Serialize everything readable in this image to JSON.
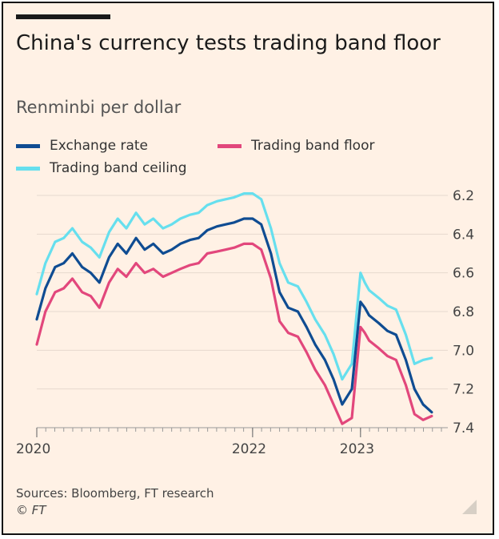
{
  "title": "China's currency tests trading band floor",
  "subtitle": "Renminbi per dollar",
  "sources": "Sources: Bloomberg, FT research",
  "copyright": "© FT",
  "chart_data": {
    "type": "line",
    "title": "China's currency tests trading band floor",
    "ylabel": "Renminbi per dollar",
    "y_inverted": true,
    "ylim": [
      7.4,
      6.2
    ],
    "yticks": [
      "6.2",
      "6.4",
      "6.6",
      "6.8",
      "7.0",
      "7.2",
      "7.4"
    ],
    "xlim": [
      2020.0,
      2023.75
    ],
    "xticks": [
      {
        "label": "2020",
        "value": 2020.0
      },
      {
        "label": "2022",
        "value": 2022.0
      },
      {
        "label": "2023",
        "value": 2023.0
      }
    ],
    "grid": "horizontal",
    "legend": "top-left",
    "series": [
      {
        "name": "Exchange rate",
        "color": "#0f4c92",
        "x": [
          2020.0,
          2020.08,
          2020.17,
          2020.25,
          2020.33,
          2020.42,
          2020.5,
          2020.58,
          2020.67,
          2020.75,
          2020.83,
          2020.92,
          2021.0,
          2021.08,
          2021.17,
          2021.25,
          2021.33,
          2021.42,
          2021.5,
          2021.58,
          2021.67,
          2021.75,
          2021.83,
          2021.92,
          2022.0,
          2022.08,
          2022.17,
          2022.25,
          2022.33,
          2022.42,
          2022.5,
          2022.58,
          2022.67,
          2022.75,
          2022.83,
          2022.92,
          2023.0,
          2023.04,
          2023.08,
          2023.17,
          2023.25,
          2023.33,
          2023.42,
          2023.5,
          2023.58,
          2023.66
        ],
        "y": [
          6.84,
          6.68,
          6.57,
          6.55,
          6.5,
          6.57,
          6.6,
          6.65,
          6.52,
          6.45,
          6.5,
          6.42,
          6.48,
          6.45,
          6.5,
          6.48,
          6.45,
          6.43,
          6.42,
          6.38,
          6.36,
          6.35,
          6.34,
          6.32,
          6.32,
          6.35,
          6.5,
          6.7,
          6.78,
          6.8,
          6.88,
          6.97,
          7.05,
          7.15,
          7.28,
          7.2,
          6.75,
          6.78,
          6.82,
          6.86,
          6.9,
          6.92,
          7.05,
          7.2,
          7.28,
          7.32
        ]
      },
      {
        "name": "Trading band floor",
        "color": "#e2477c",
        "x": [
          2020.0,
          2020.08,
          2020.17,
          2020.25,
          2020.33,
          2020.42,
          2020.5,
          2020.58,
          2020.67,
          2020.75,
          2020.83,
          2020.92,
          2021.0,
          2021.08,
          2021.17,
          2021.25,
          2021.33,
          2021.42,
          2021.5,
          2021.58,
          2021.67,
          2021.75,
          2021.83,
          2021.92,
          2022.0,
          2022.08,
          2022.17,
          2022.25,
          2022.33,
          2022.42,
          2022.5,
          2022.58,
          2022.67,
          2022.75,
          2022.83,
          2022.92,
          2023.0,
          2023.04,
          2023.08,
          2023.17,
          2023.25,
          2023.33,
          2023.42,
          2023.5,
          2023.58,
          2023.66
        ],
        "y": [
          6.97,
          6.8,
          6.7,
          6.68,
          6.63,
          6.7,
          6.72,
          6.78,
          6.65,
          6.58,
          6.62,
          6.55,
          6.6,
          6.58,
          6.62,
          6.6,
          6.58,
          6.56,
          6.55,
          6.5,
          6.49,
          6.48,
          6.47,
          6.45,
          6.45,
          6.48,
          6.63,
          6.85,
          6.91,
          6.93,
          7.01,
          7.1,
          7.18,
          7.28,
          7.38,
          7.35,
          6.88,
          6.91,
          6.95,
          6.99,
          7.03,
          7.05,
          7.18,
          7.33,
          7.36,
          7.34
        ]
      },
      {
        "name": "Trading band ceiling",
        "color": "#66dfee",
        "x": [
          2020.0,
          2020.08,
          2020.17,
          2020.25,
          2020.33,
          2020.42,
          2020.5,
          2020.58,
          2020.67,
          2020.75,
          2020.83,
          2020.92,
          2021.0,
          2021.08,
          2021.17,
          2021.25,
          2021.33,
          2021.42,
          2021.5,
          2021.58,
          2021.67,
          2021.75,
          2021.83,
          2021.92,
          2022.0,
          2022.08,
          2022.17,
          2022.25,
          2022.33,
          2022.42,
          2022.5,
          2022.58,
          2022.67,
          2022.75,
          2022.83,
          2022.92,
          2023.0,
          2023.04,
          2023.08,
          2023.17,
          2023.25,
          2023.33,
          2023.42,
          2023.5,
          2023.58,
          2023.66
        ],
        "y": [
          6.71,
          6.55,
          6.44,
          6.42,
          6.37,
          6.44,
          6.47,
          6.52,
          6.39,
          6.32,
          6.37,
          6.29,
          6.35,
          6.32,
          6.37,
          6.35,
          6.32,
          6.3,
          6.29,
          6.25,
          6.23,
          6.22,
          6.21,
          6.19,
          6.19,
          6.22,
          6.37,
          6.55,
          6.65,
          6.67,
          6.75,
          6.84,
          6.92,
          7.02,
          7.15,
          7.07,
          6.6,
          6.65,
          6.69,
          6.73,
          6.77,
          6.79,
          6.92,
          7.07,
          7.05,
          7.04
        ]
      }
    ]
  }
}
